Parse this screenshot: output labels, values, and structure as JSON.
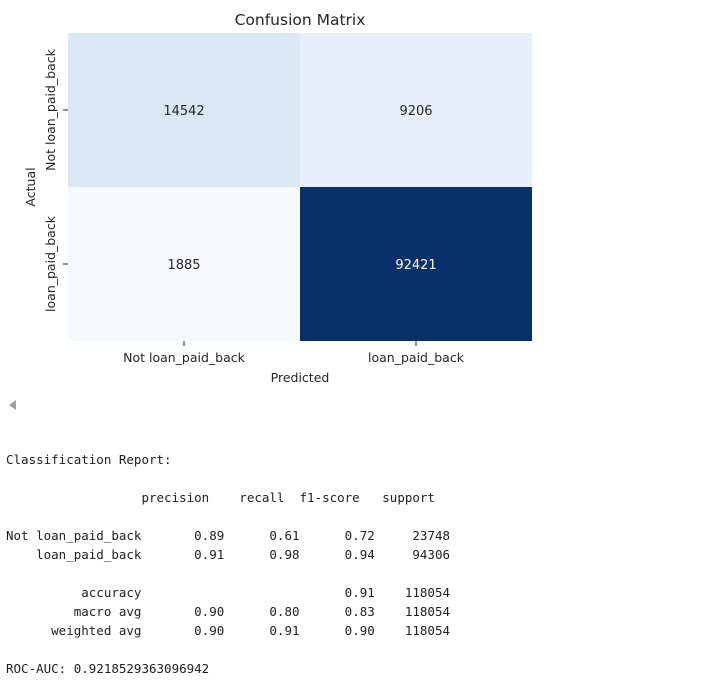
{
  "chart_data": {
    "type": "heatmap",
    "title": "Confusion Matrix",
    "xlabel": "Predicted",
    "ylabel": "Actual",
    "x_categories": [
      "Not loan_paid_back",
      "loan_paid_back"
    ],
    "y_categories": [
      "Not loan_paid_back",
      "loan_paid_back"
    ],
    "values": [
      [
        14542,
        9206
      ],
      [
        1885,
        92421
      ]
    ],
    "colormap": "Blues",
    "colorbar": false,
    "cell_colors": [
      [
        "#dae8f6",
        "#e7f0fa"
      ],
      [
        "#f5f9fe",
        "#08306b"
      ]
    ],
    "annotation_colors": [
      [
        "#262626",
        "#262626"
      ],
      [
        "#262626",
        "#ffffff"
      ]
    ]
  },
  "report": {
    "heading": "Classification Report:",
    "text": "                  precision    recall  f1-score   support\n\nNot loan_paid_back       0.89      0.61      0.72     23748\n    loan_paid_back       0.91      0.98      0.94     94306\n\n          accuracy                           0.91    118054\n         macro avg       0.90      0.80      0.83    118054\n      weighted avg       0.90      0.91      0.90    118054",
    "roc_auc": "ROC-AUC: 0.9218529363096942"
  },
  "output_scroll": {
    "icon": "scroll-left-icon"
  }
}
